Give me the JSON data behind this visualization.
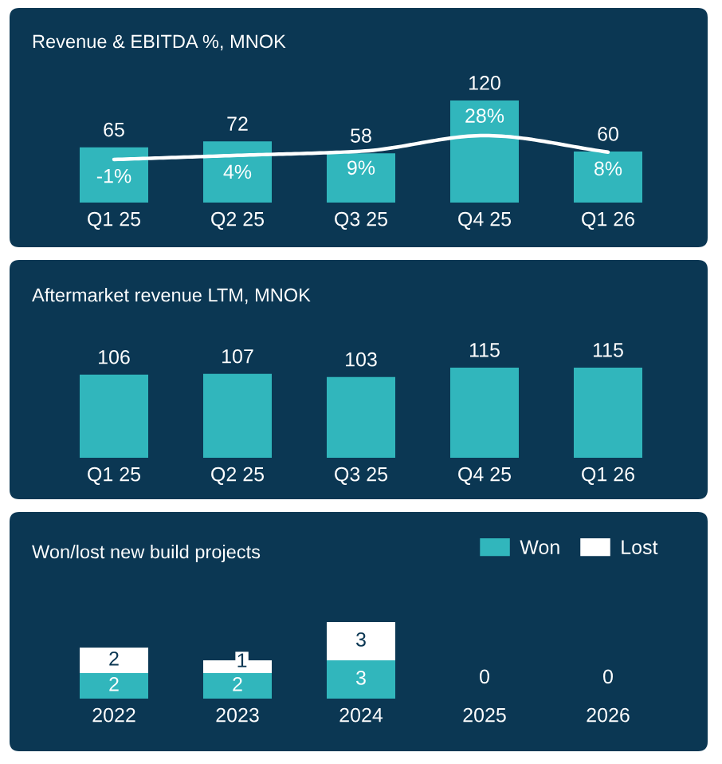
{
  "chart_data": [
    {
      "type": "bar",
      "title": "Revenue & EBITDA %, MNOK",
      "categories": [
        "Q1 25",
        "Q2 25",
        "Q3 25",
        "Q4 25",
        "Q1 26"
      ],
      "series": [
        {
          "type": "bar",
          "color": "#31b6bc",
          "values": [
            65,
            72,
            58,
            120,
            60
          ]
        },
        {
          "type": "line",
          "axis": "y2",
          "color": "#ffffff",
          "values": [
            -1,
            4,
            9,
            28,
            8
          ],
          "value_labels": [
            "-1%",
            "4%",
            "9%",
            "28%",
            "8%"
          ]
        }
      ],
      "data_labels": true,
      "tick_labels": "x"
    },
    {
      "type": "bar",
      "title": "Aftermarket revenue LTM, MNOK",
      "categories": [
        "Q1 25",
        "Q2 25",
        "Q3 25",
        "Q4 25",
        "Q1 26"
      ],
      "values": [
        106,
        107,
        103,
        115,
        115
      ],
      "color": "#31b6bc",
      "data_labels": true,
      "tick_labels": "x"
    },
    {
      "type": "bar",
      "title": "Won/lost new build projects",
      "categories": [
        "2022",
        "2023",
        "2024",
        "2025",
        "2026"
      ],
      "stacked": true,
      "series": [
        {
          "name": "Won",
          "color": "#31b6bc",
          "values": [
            2,
            2,
            3,
            0,
            0
          ],
          "value_labels": [
            "2",
            "2",
            "3",
            "0",
            "0"
          ]
        },
        {
          "name": "Lost",
          "color": "#ffffff",
          "values": [
            2,
            1,
            3,
            0,
            0
          ],
          "value_labels": [
            "2",
            "1",
            "3",
            null,
            null
          ]
        }
      ],
      "legend": "top right",
      "tick_labels": "x"
    }
  ]
}
